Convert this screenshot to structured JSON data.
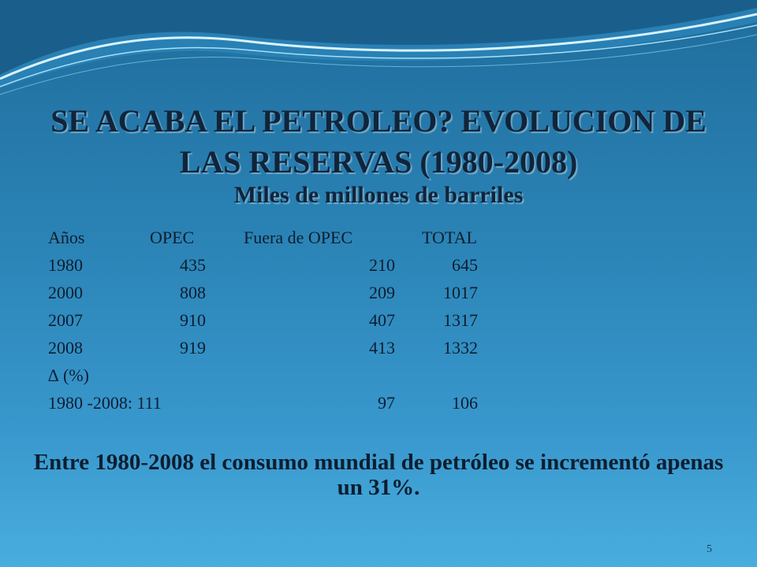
{
  "title": "SE ACABA EL PETROLEO? EVOLUCION DE LAS RESERVAS (1980-2008)",
  "subtitle": "Miles de millones de barriles",
  "table": {
    "headers": [
      "Años",
      "OPEC",
      "Fuera de OPEC",
      "TOTAL"
    ],
    "rows": [
      {
        "year": "1980",
        "opec": "435",
        "non_opec": "210",
        "total": "645"
      },
      {
        "year": "2000",
        "opec": "808",
        "non_opec": "209",
        "total": "1017"
      },
      {
        "year": "2007",
        "opec": "910",
        "non_opec": "407",
        "total": "1317"
      },
      {
        "year": "2008",
        "opec": "919",
        "non_opec": "413",
        "total": "1332"
      }
    ],
    "delta_label": "∆ (%)",
    "change": {
      "period": "1980 -2008: 111",
      "non_opec": "97",
      "total": "106"
    }
  },
  "summary": "Entre 1980-2008 el consumo mundial de petróleo se incrementó apenas un 31%.",
  "page_number": "5",
  "colors": {
    "text": "#0d1e30",
    "title": "#11243a",
    "bg_top": "#1f6d9c",
    "bg_bottom": "#49addf"
  }
}
